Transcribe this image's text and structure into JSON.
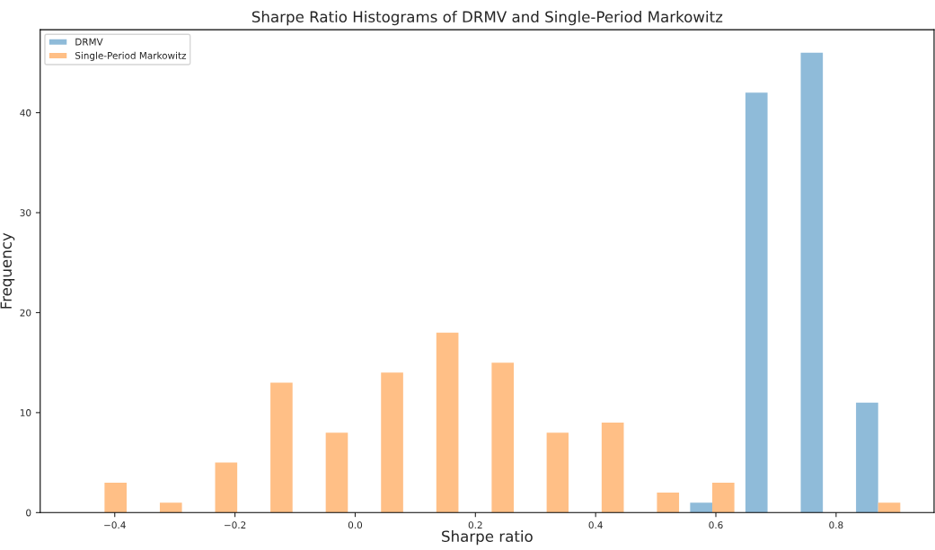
{
  "chart_data": {
    "type": "histogram",
    "title": "Sharpe Ratio Histograms of DRMV and Single-Period Markowitz",
    "xlabel": "Sharpe ratio",
    "ylabel": "Frequency",
    "bins": [
      -0.463,
      -0.371,
      -0.279,
      -0.187,
      -0.095,
      -0.003,
      0.089,
      0.181,
      0.273,
      0.364,
      0.456,
      0.548,
      0.64,
      0.732,
      0.824,
      0.916
    ],
    "series": [
      {
        "name": "DRMV",
        "color": "#8fbbd9",
        "values": [
          0,
          0,
          0,
          0,
          0,
          0,
          0,
          0,
          0,
          0,
          0,
          1,
          42,
          46,
          11
        ]
      },
      {
        "name": "Single-Period Markowitz",
        "color": "#ffbf86",
        "values": [
          3,
          1,
          5,
          13,
          8,
          14,
          18,
          15,
          8,
          9,
          2,
          3,
          0,
          0,
          1
        ]
      }
    ],
    "xlim": [
      -0.524,
      0.963
    ],
    "xticks": [
      {
        "value": -0.4,
        "label": "−0.4"
      },
      {
        "value": -0.2,
        "label": "−0.2"
      },
      {
        "value": 0.0,
        "label": "0.0"
      },
      0.2,
      0.4,
      0.6,
      0.8
    ],
    "ylim": [
      0,
      48.3
    ],
    "yticks": [
      0,
      10,
      20,
      30,
      40
    ],
    "grid": false,
    "legend": "top left"
  }
}
